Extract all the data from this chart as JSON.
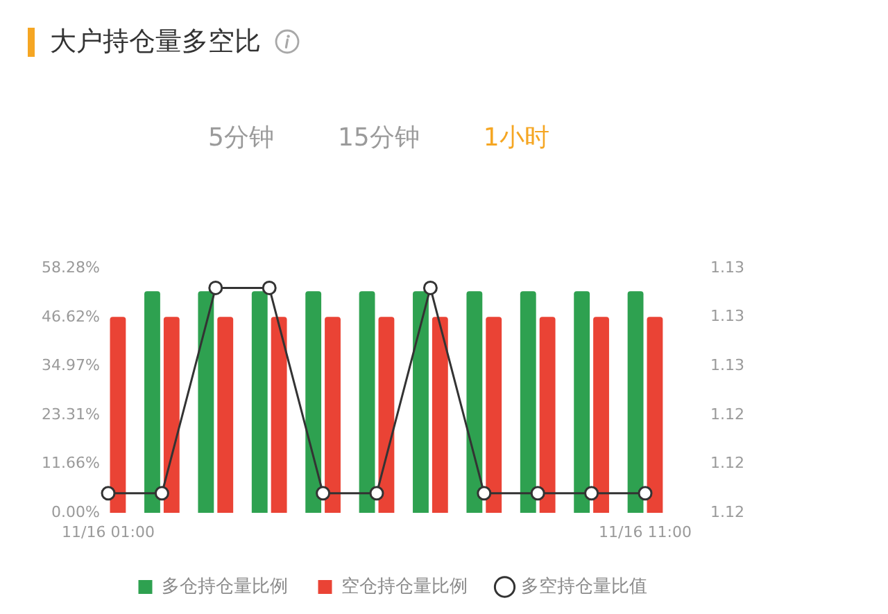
{
  "chart_data": {
    "type": "bar",
    "title": "大户持仓量多空比",
    "annotations": [
      "5分钟",
      "15分钟",
      "1小时"
    ],
    "categories": [
      "11/16 01:00",
      null,
      null,
      null,
      null,
      null,
      null,
      null,
      null,
      null,
      "11/16 11:00"
    ],
    "series": [
      {
        "name": "多仓持仓量比例",
        "color": "#2ea150",
        "values": [
          null,
          52.8,
          52.8,
          52.8,
          52.8,
          52.8,
          52.8,
          52.8,
          52.8,
          52.8,
          52.8
        ]
      },
      {
        "name": "空仓持仓量比例",
        "color": "#ea4335",
        "values": [
          46.7,
          46.7,
          46.7,
          46.7,
          46.7,
          46.7,
          46.7,
          46.7,
          46.7,
          46.7,
          46.7
        ]
      },
      {
        "name": "多空持仓量比值",
        "type": "line",
        "axis": "y2",
        "color": "#333333",
        "values": [
          1.1208,
          1.1208,
          1.1292,
          1.1292,
          1.1208,
          1.1208,
          1.1292,
          1.1208,
          1.1208,
          1.1208,
          1.1208
        ]
      }
    ],
    "ylim": [
      0,
      58.28
    ],
    "yticks": [
      {
        "value": 0,
        "label": "0.00%"
      },
      {
        "value": 11.66,
        "label": "11.66%"
      },
      {
        "value": 23.31,
        "label": "23.31%"
      },
      {
        "value": 34.97,
        "label": "34.97%"
      },
      {
        "value": 46.62,
        "label": "46.62%"
      },
      {
        "value": 58.28,
        "label": "58.28%"
      }
    ],
    "y2lim": [
      1.12,
      1.13
    ],
    "y2ticks": [
      1.12,
      {
        "value": 1.122,
        "label": "1.12"
      },
      {
        "value": 1.124,
        "label": "1.12"
      },
      {
        "value": 1.126,
        "label": "1.13"
      },
      {
        "value": 1.128,
        "label": "1.13"
      },
      1.13
    ],
    "legend": "bottom",
    "marker": "circle"
  }
}
